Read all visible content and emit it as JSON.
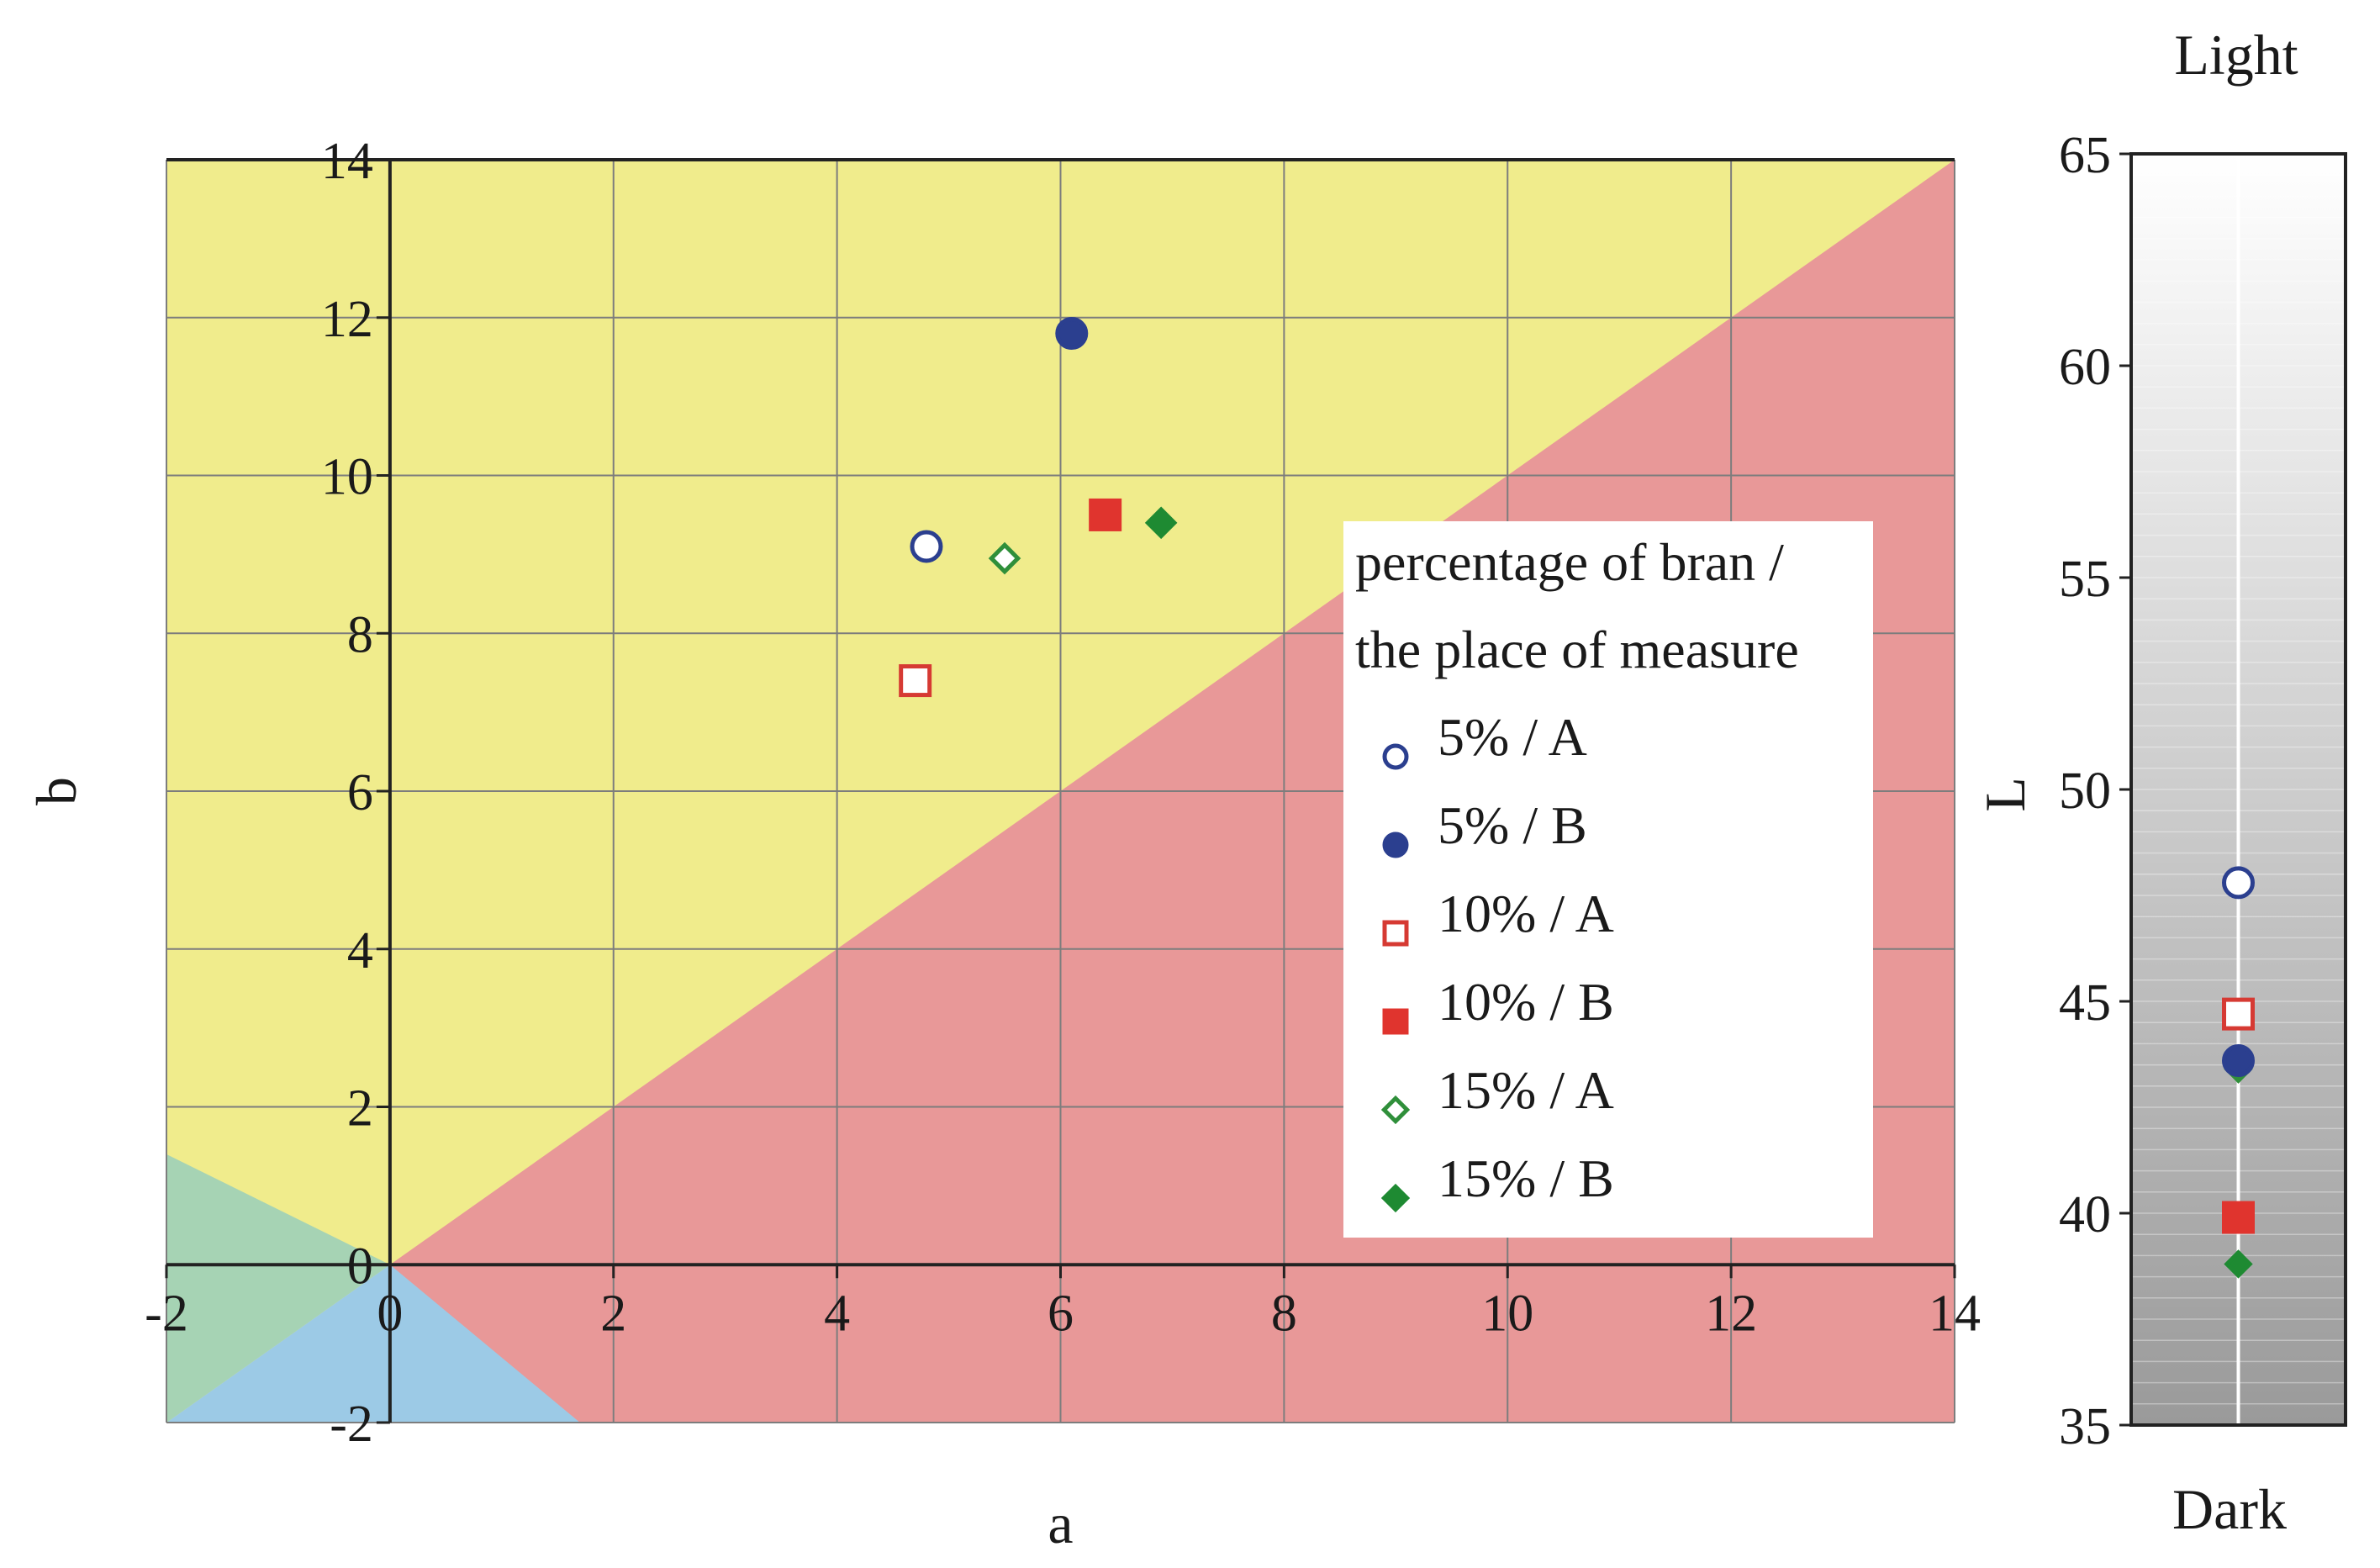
{
  "chart_data": [
    {
      "type": "scatter",
      "xlabel": "a",
      "ylabel": "b",
      "xlim": [
        -2,
        14
      ],
      "ylim": [
        -2,
        14
      ],
      "xticks": [
        "-2",
        "0",
        "2",
        "4",
        "6",
        "8",
        "10",
        "12",
        "14"
      ],
      "yticks": [
        "-2",
        "0",
        "2",
        "4",
        "6",
        "8",
        "10",
        "12",
        "14"
      ],
      "grid": true,
      "background_regions": [
        {
          "color": "#f0ec8c",
          "role": "background"
        },
        {
          "color": "#e89898",
          "role": "below b = a"
        },
        {
          "color": "#9ccae6",
          "role": "small a, b < 0"
        },
        {
          "color": "#a6d3b4",
          "role": "a < 0, near b = 0"
        }
      ],
      "legend": {
        "title": [
          "percentage of bran /",
          "the place of measure"
        ],
        "position": "right-middle"
      },
      "series": [
        {
          "name": "5% / A",
          "marker": "circle-open",
          "color": "#2b3f8f",
          "x": 4.8,
          "y": 9.1
        },
        {
          "name": "5% / B",
          "marker": "circle-filled",
          "color": "#2b3f8f",
          "x": 6.1,
          "y": 11.8
        },
        {
          "name": "10% / A",
          "marker": "square-open",
          "color": "#d63a33",
          "x": 4.7,
          "y": 7.4
        },
        {
          "name": "10% / B",
          "marker": "square-filled",
          "color": "#e0342e",
          "x": 6.4,
          "y": 9.5
        },
        {
          "name": "15% / A",
          "marker": "diamond-open",
          "color": "#2f8f3a",
          "x": 5.5,
          "y": 8.95
        },
        {
          "name": "15% / B",
          "marker": "diamond-filled",
          "color": "#1e8a32",
          "x": 6.9,
          "y": 9.4
        }
      ]
    },
    {
      "type": "scatter",
      "ylabel": "L",
      "ylim": [
        35,
        65
      ],
      "yticks": [
        "35",
        "40",
        "45",
        "50",
        "55",
        "60",
        "65"
      ],
      "top_label": "Light",
      "bottom_label": "Dark",
      "grid": true,
      "series": [
        {
          "name": "5% / A",
          "y": 47.8
        },
        {
          "name": "5% / B",
          "y": 43.6
        },
        {
          "name": "10% / A",
          "y": 44.7
        },
        {
          "name": "10% / B",
          "y": 39.9
        },
        {
          "name": "15% / A",
          "y": 43.4
        },
        {
          "name": "15% / B",
          "y": 38.8
        }
      ]
    }
  ]
}
